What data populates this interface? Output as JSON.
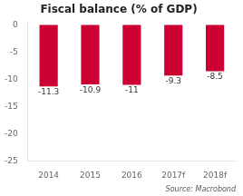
{
  "chart_data": {
    "type": "bar",
    "title": "Fiscal balance (% of GDP)",
    "categories": [
      "2014",
      "2015",
      "2016",
      "2017f",
      "2018f"
    ],
    "values": [
      -11.3,
      -10.9,
      -11.0,
      -9.3,
      -8.5
    ],
    "color": "#cc0033",
    "ylim": [
      -25,
      0.5
    ],
    "yticks": [
      0,
      -5,
      -10,
      -15,
      -20,
      -25
    ],
    "grid": false,
    "data_labels": true,
    "annotations": [
      "Source: Macrobond"
    ]
  }
}
